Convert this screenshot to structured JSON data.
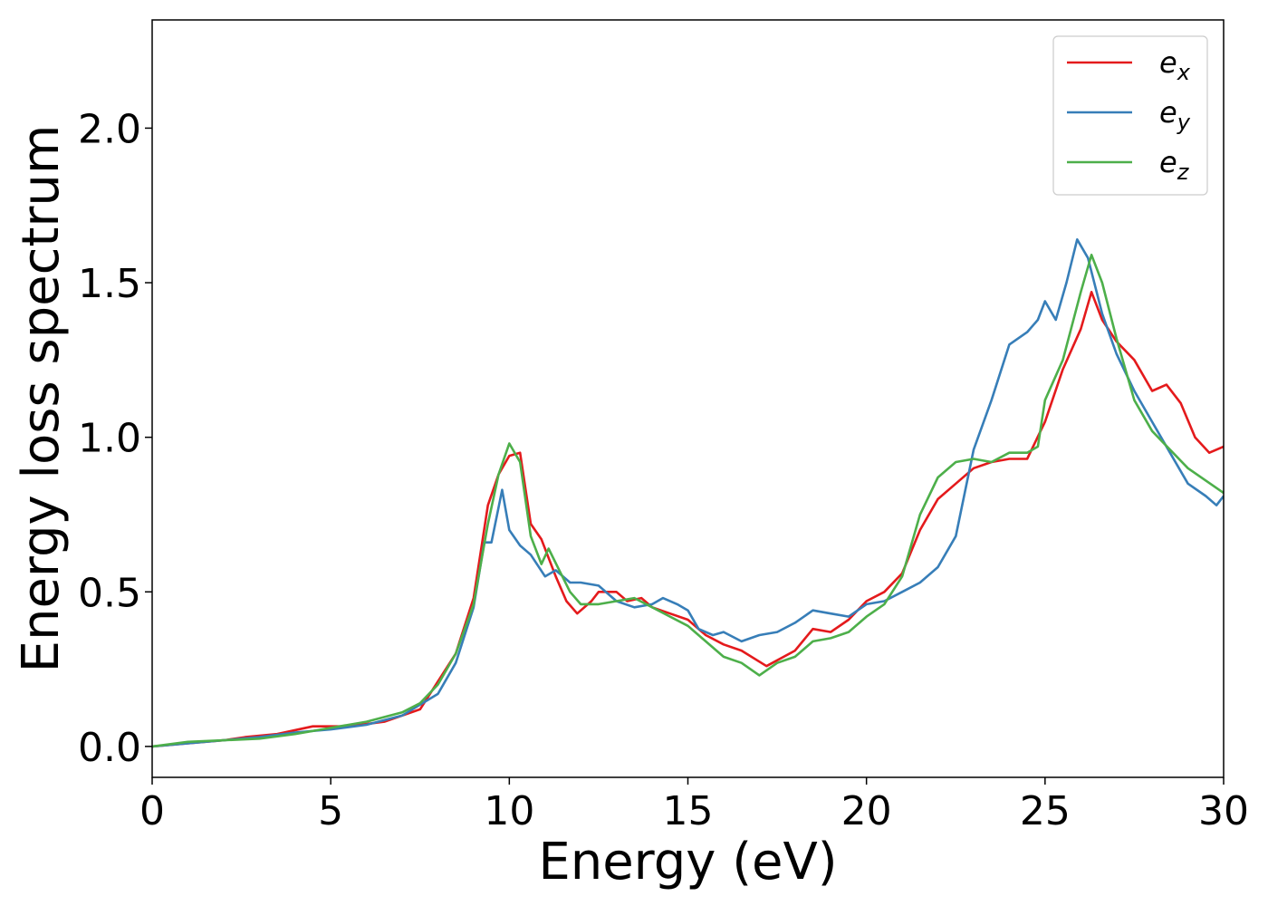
{
  "chart_data": {
    "type": "line",
    "title": "",
    "xlabel": "Energy (eV)",
    "ylabel": "Energy loss spectrum",
    "xlim": [
      0,
      30
    ],
    "ylim": [
      -0.1,
      2.35
    ],
    "xticks": [
      0,
      5,
      10,
      15,
      20,
      25,
      30
    ],
    "xtick_labels": [
      "0",
      "5",
      "10",
      "15",
      "20",
      "25",
      "30"
    ],
    "yticks": [
      0.0,
      0.5,
      1.0,
      1.5,
      2.0
    ],
    "ytick_labels": [
      "0.0",
      "0.5",
      "1.0",
      "1.5",
      "2.0"
    ],
    "grid": false,
    "legend_position": "top-right",
    "series": [
      {
        "name": "e_x",
        "label_main": "e",
        "label_sub": "x",
        "color": "#e41a1c",
        "points": [
          [
            0,
            0.0
          ],
          [
            1,
            0.01
          ],
          [
            2,
            0.02
          ],
          [
            2.6,
            0.03
          ],
          [
            3.5,
            0.04
          ],
          [
            4.5,
            0.065
          ],
          [
            5.5,
            0.065
          ],
          [
            6.5,
            0.08
          ],
          [
            7.5,
            0.12
          ],
          [
            8.5,
            0.3
          ],
          [
            9,
            0.48
          ],
          [
            9.4,
            0.78
          ],
          [
            9.7,
            0.88
          ],
          [
            10,
            0.94
          ],
          [
            10.3,
            0.95
          ],
          [
            10.6,
            0.72
          ],
          [
            10.9,
            0.67
          ],
          [
            11.3,
            0.55
          ],
          [
            11.6,
            0.47
          ],
          [
            11.9,
            0.43
          ],
          [
            12.3,
            0.47
          ],
          [
            12.5,
            0.5
          ],
          [
            13,
            0.5
          ],
          [
            13.3,
            0.47
          ],
          [
            13.7,
            0.48
          ],
          [
            14,
            0.45
          ],
          [
            14.5,
            0.43
          ],
          [
            15,
            0.41
          ],
          [
            15.5,
            0.36
          ],
          [
            16,
            0.33
          ],
          [
            16.5,
            0.31
          ],
          [
            17.2,
            0.26
          ],
          [
            18,
            0.31
          ],
          [
            18.5,
            0.38
          ],
          [
            19,
            0.37
          ],
          [
            19.5,
            0.41
          ],
          [
            20,
            0.47
          ],
          [
            20.5,
            0.5
          ],
          [
            21,
            0.56
          ],
          [
            21.5,
            0.7
          ],
          [
            22,
            0.8
          ],
          [
            22.5,
            0.85
          ],
          [
            23,
            0.9
          ],
          [
            23.5,
            0.92
          ],
          [
            24,
            0.93
          ],
          [
            24.5,
            0.93
          ],
          [
            25,
            1.05
          ],
          [
            25.5,
            1.22
          ],
          [
            26,
            1.35
          ],
          [
            26.3,
            1.47
          ],
          [
            26.6,
            1.38
          ],
          [
            27,
            1.31
          ],
          [
            27.5,
            1.25
          ],
          [
            28,
            1.15
          ],
          [
            28.4,
            1.17
          ],
          [
            28.8,
            1.11
          ],
          [
            29.2,
            1.0
          ],
          [
            29.6,
            0.95
          ],
          [
            30,
            0.97
          ]
        ]
      },
      {
        "name": "e_y",
        "label_main": "e",
        "label_sub": "y",
        "color": "#377eb8",
        "points": [
          [
            0,
            0.0
          ],
          [
            1,
            0.01
          ],
          [
            2,
            0.02
          ],
          [
            3,
            0.03
          ],
          [
            4,
            0.045
          ],
          [
            5,
            0.055
          ],
          [
            6,
            0.07
          ],
          [
            7,
            0.1
          ],
          [
            8,
            0.17
          ],
          [
            8.5,
            0.27
          ],
          [
            9,
            0.45
          ],
          [
            9.3,
            0.66
          ],
          [
            9.5,
            0.66
          ],
          [
            9.8,
            0.83
          ],
          [
            10,
            0.7
          ],
          [
            10.3,
            0.65
          ],
          [
            10.6,
            0.62
          ],
          [
            11,
            0.55
          ],
          [
            11.3,
            0.57
          ],
          [
            11.7,
            0.53
          ],
          [
            12,
            0.53
          ],
          [
            12.5,
            0.52
          ],
          [
            13,
            0.47
          ],
          [
            13.5,
            0.45
          ],
          [
            14,
            0.46
          ],
          [
            14.3,
            0.48
          ],
          [
            14.7,
            0.46
          ],
          [
            15,
            0.44
          ],
          [
            15.3,
            0.38
          ],
          [
            15.7,
            0.36
          ],
          [
            16,
            0.37
          ],
          [
            16.5,
            0.34
          ],
          [
            17,
            0.36
          ],
          [
            17.5,
            0.37
          ],
          [
            18,
            0.4
          ],
          [
            18.5,
            0.44
          ],
          [
            19,
            0.43
          ],
          [
            19.5,
            0.42
          ],
          [
            20,
            0.46
          ],
          [
            20.5,
            0.47
          ],
          [
            21,
            0.5
          ],
          [
            21.5,
            0.53
          ],
          [
            22,
            0.58
          ],
          [
            22.5,
            0.68
          ],
          [
            23,
            0.96
          ],
          [
            23.5,
            1.12
          ],
          [
            24,
            1.3
          ],
          [
            24.5,
            1.34
          ],
          [
            24.8,
            1.38
          ],
          [
            25,
            1.44
          ],
          [
            25.3,
            1.38
          ],
          [
            25.6,
            1.5
          ],
          [
            25.9,
            1.64
          ],
          [
            26.2,
            1.58
          ],
          [
            26.6,
            1.4
          ],
          [
            27,
            1.27
          ],
          [
            27.5,
            1.15
          ],
          [
            28,
            1.05
          ],
          [
            28.5,
            0.95
          ],
          [
            29,
            0.85
          ],
          [
            29.5,
            0.81
          ],
          [
            29.8,
            0.78
          ],
          [
            30,
            0.81
          ]
        ]
      },
      {
        "name": "e_z",
        "label_main": "e",
        "label_sub": "z",
        "color": "#4daf4a",
        "points": [
          [
            0,
            0.0
          ],
          [
            1,
            0.015
          ],
          [
            2,
            0.02
          ],
          [
            3,
            0.025
          ],
          [
            4,
            0.04
          ],
          [
            5,
            0.06
          ],
          [
            6,
            0.08
          ],
          [
            7,
            0.11
          ],
          [
            7.5,
            0.14
          ],
          [
            8,
            0.2
          ],
          [
            8.5,
            0.3
          ],
          [
            9,
            0.46
          ],
          [
            9.4,
            0.72
          ],
          [
            9.7,
            0.88
          ],
          [
            10,
            0.98
          ],
          [
            10.3,
            0.92
          ],
          [
            10.6,
            0.68
          ],
          [
            10.9,
            0.59
          ],
          [
            11.1,
            0.64
          ],
          [
            11.4,
            0.57
          ],
          [
            11.7,
            0.5
          ],
          [
            12,
            0.46
          ],
          [
            12.5,
            0.46
          ],
          [
            13,
            0.47
          ],
          [
            13.5,
            0.48
          ],
          [
            14,
            0.45
          ],
          [
            14.5,
            0.42
          ],
          [
            15,
            0.39
          ],
          [
            15.5,
            0.34
          ],
          [
            16,
            0.29
          ],
          [
            16.5,
            0.27
          ],
          [
            17,
            0.23
          ],
          [
            17.5,
            0.27
          ],
          [
            18,
            0.29
          ],
          [
            18.5,
            0.34
          ],
          [
            19,
            0.35
          ],
          [
            19.5,
            0.37
          ],
          [
            20,
            0.42
          ],
          [
            20.5,
            0.46
          ],
          [
            21,
            0.55
          ],
          [
            21.5,
            0.75
          ],
          [
            22,
            0.87
          ],
          [
            22.5,
            0.92
          ],
          [
            23,
            0.93
          ],
          [
            23.5,
            0.92
          ],
          [
            24,
            0.95
          ],
          [
            24.5,
            0.95
          ],
          [
            24.8,
            0.97
          ],
          [
            25,
            1.12
          ],
          [
            25.5,
            1.25
          ],
          [
            26,
            1.47
          ],
          [
            26.3,
            1.59
          ],
          [
            26.6,
            1.5
          ],
          [
            27,
            1.32
          ],
          [
            27.5,
            1.12
          ],
          [
            28,
            1.02
          ],
          [
            28.5,
            0.96
          ],
          [
            29,
            0.9
          ],
          [
            29.5,
            0.86
          ],
          [
            30,
            0.82
          ]
        ]
      }
    ]
  }
}
